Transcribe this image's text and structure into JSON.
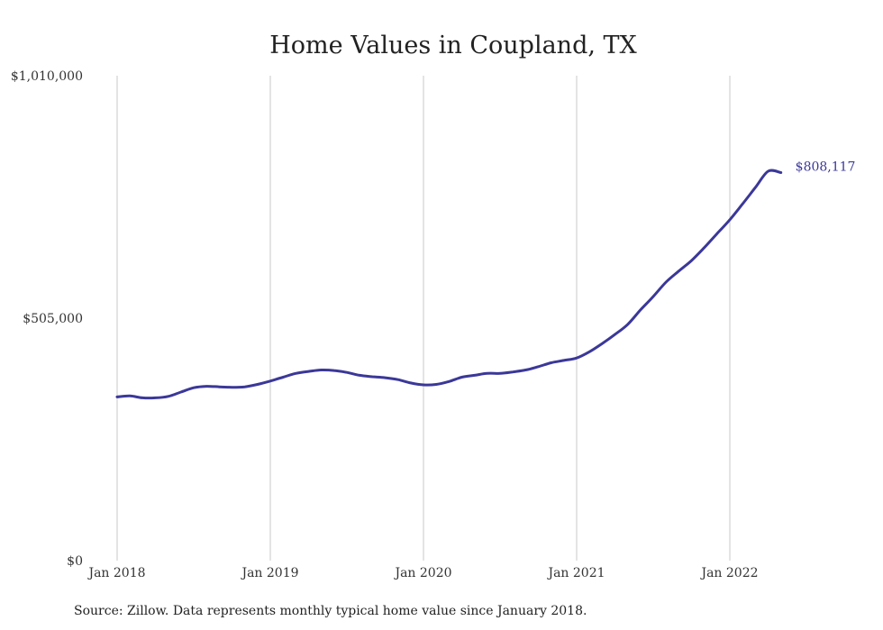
{
  "chart_data": {
    "type": "line",
    "title": "Home Values in Coupland, TX",
    "xlabel": "",
    "ylabel": "",
    "ylim": [
      0,
      1010000
    ],
    "xlim": [
      "2018-01",
      "2022-05"
    ],
    "y_ticks": [
      {
        "value": 0,
        "label": "$0"
      },
      {
        "value": 505000,
        "label": "$505,000"
      },
      {
        "value": 1010000,
        "label": "$1,010,000"
      }
    ],
    "x_ticks": [
      {
        "value": "2018-01",
        "label": "Jan 2018"
      },
      {
        "value": "2019-01",
        "label": "Jan 2019"
      },
      {
        "value": "2020-01",
        "label": "Jan 2020"
      },
      {
        "value": "2021-01",
        "label": "Jan 2021"
      },
      {
        "value": "2022-01",
        "label": "Jan 2022"
      }
    ],
    "grid": {
      "vertical": true,
      "horizontal": false
    },
    "line_color": "#3b3899",
    "grid_color": "#c8c8c8",
    "end_label": "$808,117",
    "source_note": "Source: Zillow. Data represents monthly typical home value since January 2018.",
    "series": [
      {
        "x": [
          "2018-01",
          "2018-02",
          "2018-03",
          "2018-04",
          "2018-05",
          "2018-06",
          "2018-07",
          "2018-08",
          "2018-09",
          "2018-10",
          "2018-11",
          "2018-12",
          "2019-01",
          "2019-02",
          "2019-03",
          "2019-04",
          "2019-05",
          "2019-06",
          "2019-07",
          "2019-08",
          "2019-09",
          "2019-10",
          "2019-11",
          "2019-12",
          "2020-01",
          "2020-02",
          "2020-03",
          "2020-04",
          "2020-05",
          "2020-06",
          "2020-07",
          "2020-08",
          "2020-09",
          "2020-10",
          "2020-11",
          "2020-12",
          "2021-01",
          "2021-02",
          "2021-03",
          "2021-04",
          "2021-05",
          "2021-06",
          "2021-07",
          "2021-08",
          "2021-09",
          "2021-10",
          "2021-11",
          "2021-12",
          "2022-01",
          "2022-02",
          "2022-03",
          "2022-04",
          "2022-05"
        ],
        "values": [
          341000,
          343000,
          339000,
          339000,
          342000,
          351000,
          360000,
          363000,
          362000,
          361000,
          362000,
          367000,
          374000,
          382000,
          390000,
          394000,
          397000,
          396000,
          392000,
          386000,
          383000,
          381000,
          377000,
          370000,
          366000,
          367000,
          373000,
          382000,
          386000,
          390000,
          390000,
          393000,
          397000,
          404000,
          412000,
          417000,
          422000,
          435000,
          452000,
          471000,
          492000,
          522000,
          550000,
          580000,
          603000,
          625000,
          652000,
          681000,
          710000,
          743000,
          777000,
          811000,
          808117
        ]
      }
    ]
  }
}
